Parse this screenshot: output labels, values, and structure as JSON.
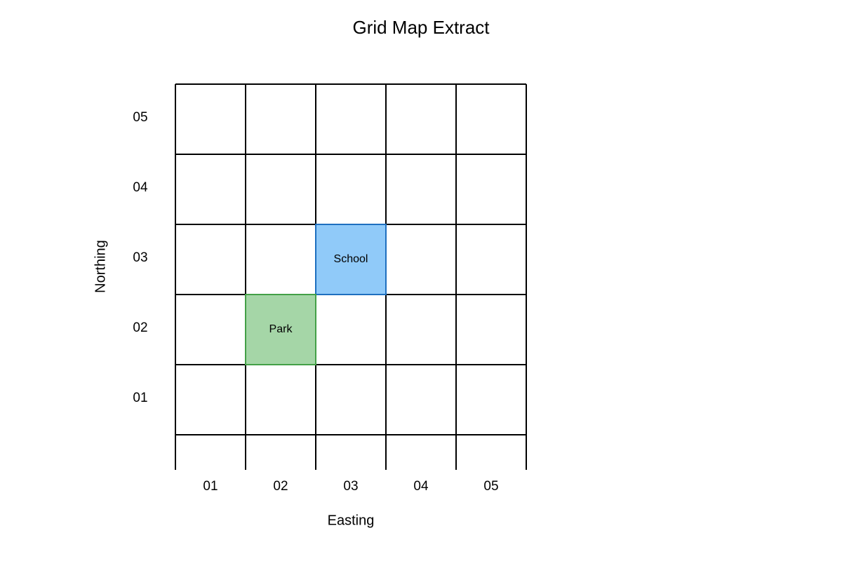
{
  "title": "Grid Map Extract",
  "x_axis_label": "Easting",
  "y_axis_label": "Northing",
  "eastings": [
    "01",
    "02",
    "03",
    "04",
    "05"
  ],
  "northings": [
    "01",
    "02",
    "03",
    "04",
    "05"
  ],
  "features": [
    {
      "label": "School",
      "easting": "03",
      "northing": "03",
      "fill": "#90caf9",
      "border": "#1e6fbf"
    },
    {
      "label": "Park",
      "easting": "02",
      "northing": "02",
      "fill": "#a5d6a7",
      "border": "#43a047"
    }
  ]
}
